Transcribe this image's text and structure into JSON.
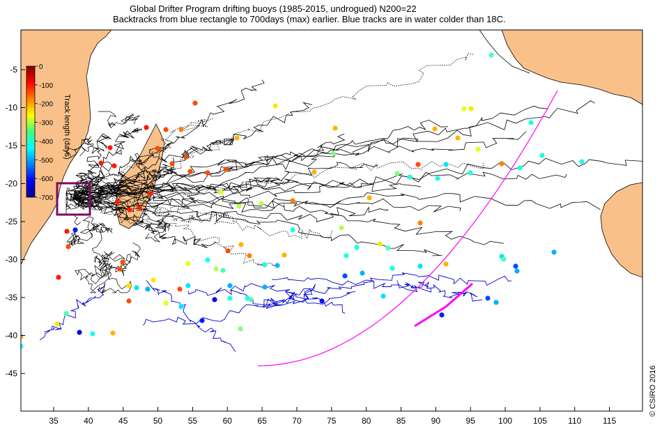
{
  "header": {
    "title_line1": "Global Drifter Program drifting buoys (1985-2015, undrogued) N200=22",
    "title_line2": "Backtracks from blue rectangle to 700days (max) earlier. Blue tracks are in water colder than 18C."
  },
  "map": {
    "x_ticks": [
      "35",
      "40",
      "45",
      "50",
      "55",
      "60",
      "65",
      "70",
      "75",
      "80",
      "85",
      "90",
      "95",
      "100",
      "105",
      "110",
      "115"
    ],
    "y_ticks": [
      "-5",
      "-10",
      "-15",
      "-20",
      "-25",
      "-30",
      "-35",
      "-40",
      "-45"
    ],
    "x_range": [
      30,
      122
    ],
    "y_range": [
      -50,
      0
    ],
    "colors": {
      "land": "#f9c189",
      "track_warm": "#000000",
      "track_cold": "#0000cc",
      "great_circle": "#ff00ff",
      "release_box": "#7a0d5f"
    }
  },
  "colorbar": {
    "label": "Track length (days)",
    "ticks": [
      "0",
      "-100",
      "-200",
      "-300",
      "-400",
      "-500",
      "-600",
      "-700"
    ],
    "range": [
      -700,
      0
    ],
    "colormap": "jet"
  },
  "copyright": "© CSIRO 2016"
}
